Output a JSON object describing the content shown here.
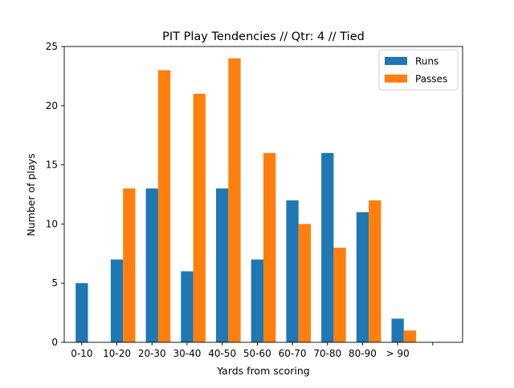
{
  "chart_data": {
    "type": "bar",
    "title": "PIT Play Tendencies // Qtr: 4 // Tied",
    "xlabel": "Yards from scoring",
    "ylabel": "Number of plays",
    "categories": [
      "0-10",
      "10-20",
      "20-30",
      "30-40",
      "40-50",
      "50-60",
      "60-70",
      "70-80",
      "80-90",
      "> 90",
      ""
    ],
    "series": [
      {
        "name": "Runs",
        "color": "#1f77b4",
        "values": [
          5,
          7,
          13,
          6,
          13,
          7,
          12,
          16,
          11,
          2,
          0
        ]
      },
      {
        "name": "Passes",
        "color": "#ff7f0e",
        "values": [
          0,
          13,
          23,
          21,
          24,
          16,
          10,
          8,
          12,
          1,
          0
        ]
      }
    ],
    "ylim": [
      0,
      25
    ],
    "yticks": [
      0,
      5,
      10,
      15,
      20,
      25
    ],
    "grid": false,
    "legend_position": "top-right"
  }
}
